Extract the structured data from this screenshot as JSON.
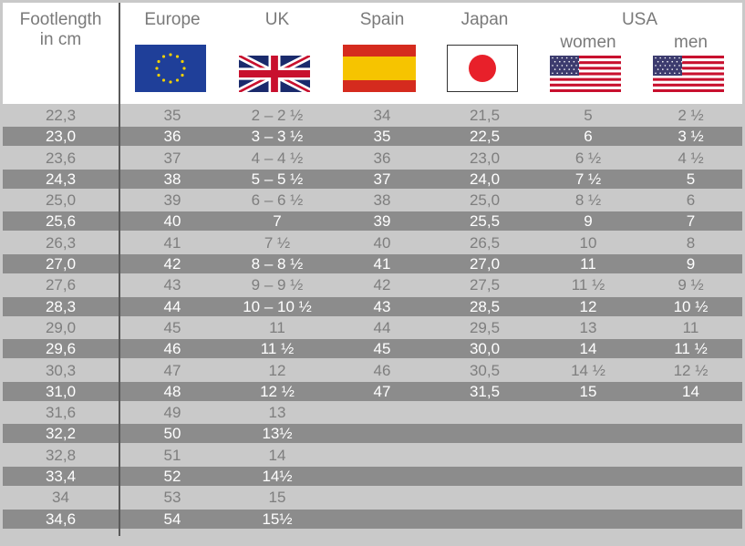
{
  "header": {
    "footlength_line1": "Footlength",
    "footlength_line2": "in cm",
    "europe": "Europe",
    "uk": "UK",
    "spain": "Spain",
    "japan": "Japan",
    "usa": "USA",
    "women": "women",
    "men": "men"
  },
  "colors": {
    "dark_row": "#8c8c8c",
    "light_row": "#c9c9c9",
    "header_text": "#7a7a7a"
  },
  "rows": [
    [
      "22,3",
      "35",
      "2 – 2 ½",
      "34",
      "21,5",
      "5",
      "2 ½"
    ],
    [
      "23,0",
      "36",
      "3 – 3 ½",
      "35",
      "22,5",
      "6",
      "3 ½"
    ],
    [
      "23,6",
      "37",
      "4 – 4 ½",
      "36",
      "23,0",
      "6 ½",
      "4 ½"
    ],
    [
      "24,3",
      "38",
      "5 – 5 ½",
      "37",
      "24,0",
      "7 ½",
      "5"
    ],
    [
      "25,0",
      "39",
      "6 – 6 ½",
      "38",
      "25,0",
      "8 ½",
      "6"
    ],
    [
      "25,6",
      "40",
      "7",
      "39",
      "25,5",
      "9",
      "7"
    ],
    [
      "26,3",
      "41",
      "7 ½",
      "40",
      "26,5",
      "10",
      "8"
    ],
    [
      "27,0",
      "42",
      "8 – 8 ½",
      "41",
      "27,0",
      "11",
      "9"
    ],
    [
      "27,6",
      "43",
      "9 – 9 ½",
      "42",
      "27,5",
      "11 ½",
      "9 ½"
    ],
    [
      "28,3",
      "44",
      "10 – 10 ½",
      "43",
      "28,5",
      "12",
      "10 ½"
    ],
    [
      "29,0",
      "45",
      "11",
      "44",
      "29,5",
      "13",
      "11"
    ],
    [
      "29,6",
      "46",
      "11 ½",
      "45",
      "30,0",
      "14",
      "11 ½"
    ],
    [
      "30,3",
      "47",
      "12",
      "46",
      "30,5",
      "14 ½",
      "12 ½"
    ],
    [
      "31,0",
      "48",
      "12 ½",
      "47",
      "31,5",
      "15",
      "14"
    ],
    [
      "31,6",
      "49",
      "13",
      "",
      "",
      "",
      ""
    ],
    [
      "32,2",
      "50",
      "13½",
      "",
      "",
      "",
      ""
    ],
    [
      "32,8",
      "51",
      "14",
      "",
      "",
      "",
      ""
    ],
    [
      "33,4",
      "52",
      "14½",
      "",
      "",
      "",
      ""
    ],
    [
      "34",
      "53",
      "15",
      "",
      "",
      "",
      ""
    ],
    [
      "34,6",
      "54",
      "15½",
      "",
      "",
      "",
      ""
    ]
  ]
}
